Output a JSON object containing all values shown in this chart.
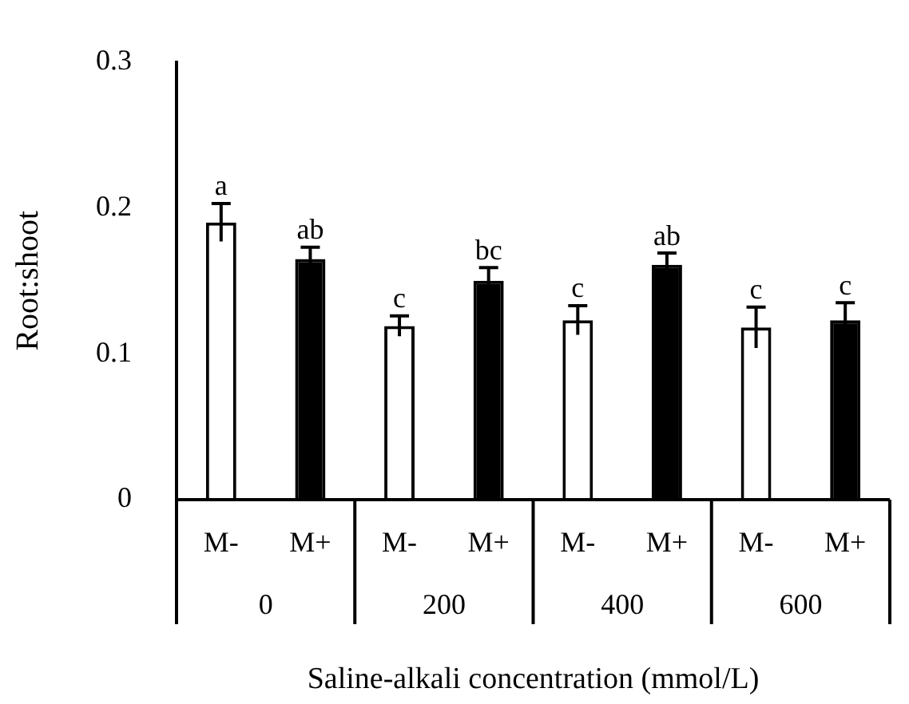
{
  "chart_data": {
    "type": "bar",
    "xlabel": "Saline-alkali concentration (mmol/L)",
    "ylabel": "Root:shoot",
    "categories": [
      "0",
      "200",
      "400",
      "600"
    ],
    "series": [
      {
        "name": "M-",
        "color": "#ffffff",
        "values": [
          0.19,
          0.119,
          0.123,
          0.118
        ],
        "errors": [
          0.013,
          0.007,
          0.01,
          0.014
        ],
        "value_labels": [
          "a",
          "c",
          "c",
          "c"
        ]
      },
      {
        "name": "M+",
        "color": "#000000",
        "values": [
          0.165,
          0.15,
          0.161,
          0.123
        ],
        "errors": [
          0.008,
          0.009,
          0.008,
          0.012
        ],
        "value_labels": [
          "ab",
          "bc",
          "ab",
          "c"
        ]
      }
    ],
    "ylim": [
      0,
      0.3
    ],
    "yticks": [
      0,
      0.1,
      0.2,
      0.3
    ],
    "grid": false,
    "legend": false
  }
}
